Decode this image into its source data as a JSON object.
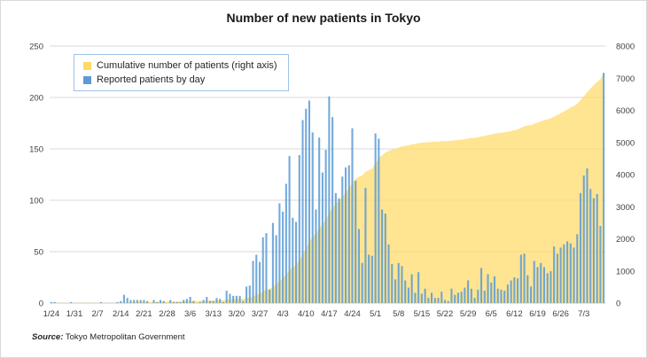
{
  "title": "Number of new patients in Tokyo",
  "source": {
    "label": "Source:",
    "text": " Tokyo Metropolitan Government"
  },
  "legend": {
    "position": "top-left-inside",
    "items": [
      {
        "label": "Cumulative number of patients (right axis)",
        "series": "cumulative",
        "swatch_color": "#FFD966"
      },
      {
        "label": "Reported patients by day",
        "series": "daily",
        "swatch_color": "#5B9BD5"
      }
    ]
  },
  "colors": {
    "bar": "#5B9BD5",
    "bar_opacity": 0.85,
    "area": "#FFD966",
    "area_opacity": 0.72,
    "gridline": "#D9D9D9",
    "axis_line": "#C9C9C9",
    "tick_text": "#404040",
    "title_text": "#1A1A1A",
    "legend_border": "#9DC3E6",
    "background": "#FFFFFF"
  },
  "chart_data": {
    "type": "combo",
    "grid": true,
    "legend_position": "top-left-inside",
    "n_days": 168,
    "tick_interval_days": 7,
    "x_tick_labels": [
      "1/24",
      "1/31",
      "2/7",
      "2/14",
      "2/21",
      "2/28",
      "3/6",
      "3/13",
      "3/20",
      "3/27",
      "4/3",
      "4/10",
      "4/17",
      "4/24",
      "5/1",
      "5/8",
      "5/15",
      "5/22",
      "5/29",
      "6/5",
      "6/12",
      "6/19",
      "6/26",
      "7/3"
    ],
    "left_axis": {
      "min": 0,
      "max": 250,
      "ticks": [
        0,
        50,
        100,
        150,
        200,
        250
      ]
    },
    "right_axis": {
      "min": 0,
      "max": 8000,
      "ticks": [
        0,
        1000,
        2000,
        3000,
        4000,
        5000,
        6000,
        7000,
        8000
      ]
    },
    "series": [
      {
        "name": "Reported patients by day",
        "type": "bar",
        "axis": "left",
        "color": "#5B9BD5",
        "values": [
          1,
          1,
          0,
          0,
          0,
          0,
          1,
          0,
          0,
          0,
          0,
          0,
          0,
          0,
          0,
          1,
          0,
          0,
          0,
          0,
          1,
          2,
          8,
          5,
          3,
          3,
          3,
          3,
          3,
          2,
          0,
          3,
          1,
          3,
          2,
          0,
          3,
          1,
          1,
          1,
          3,
          4,
          6,
          2,
          0,
          1,
          3,
          6,
          2,
          2,
          5,
          4,
          1,
          12,
          9,
          7,
          7,
          7,
          2,
          16,
          17,
          41,
          47,
          40,
          64,
          68,
          13,
          78,
          66,
          97,
          89,
          116,
          143,
          83,
          79,
          144,
          178,
          189,
          197,
          166,
          91,
          161,
          127,
          149,
          201,
          181,
          107,
          102,
          123,
          132,
          134,
          170,
          119,
          72,
          39,
          112,
          47,
          46,
          165,
          160,
          91,
          87,
          57,
          38,
          23,
          39,
          36,
          22,
          15,
          28,
          10,
          30,
          9,
          14,
          5,
          10,
          5,
          5,
          11,
          3,
          2,
          14,
          8,
          10,
          11,
          15,
          22,
          14,
          5,
          13,
          34,
          12,
          28,
          20,
          26,
          14,
          13,
          12,
          18,
          22,
          25,
          24,
          47,
          48,
          27,
          16,
          41,
          35,
          39,
          35,
          29,
          31,
          55,
          48,
          54,
          57,
          60,
          58,
          54,
          67,
          107,
          124,
          131,
          111,
          102,
          106,
          75,
          224
        ]
      },
      {
        "name": "Cumulative number of patients (right axis)",
        "type": "area",
        "axis": "right",
        "color": "#FFD966",
        "derivation": "cumulative_sum_of_daily_values",
        "final_total": 7184
      }
    ]
  }
}
